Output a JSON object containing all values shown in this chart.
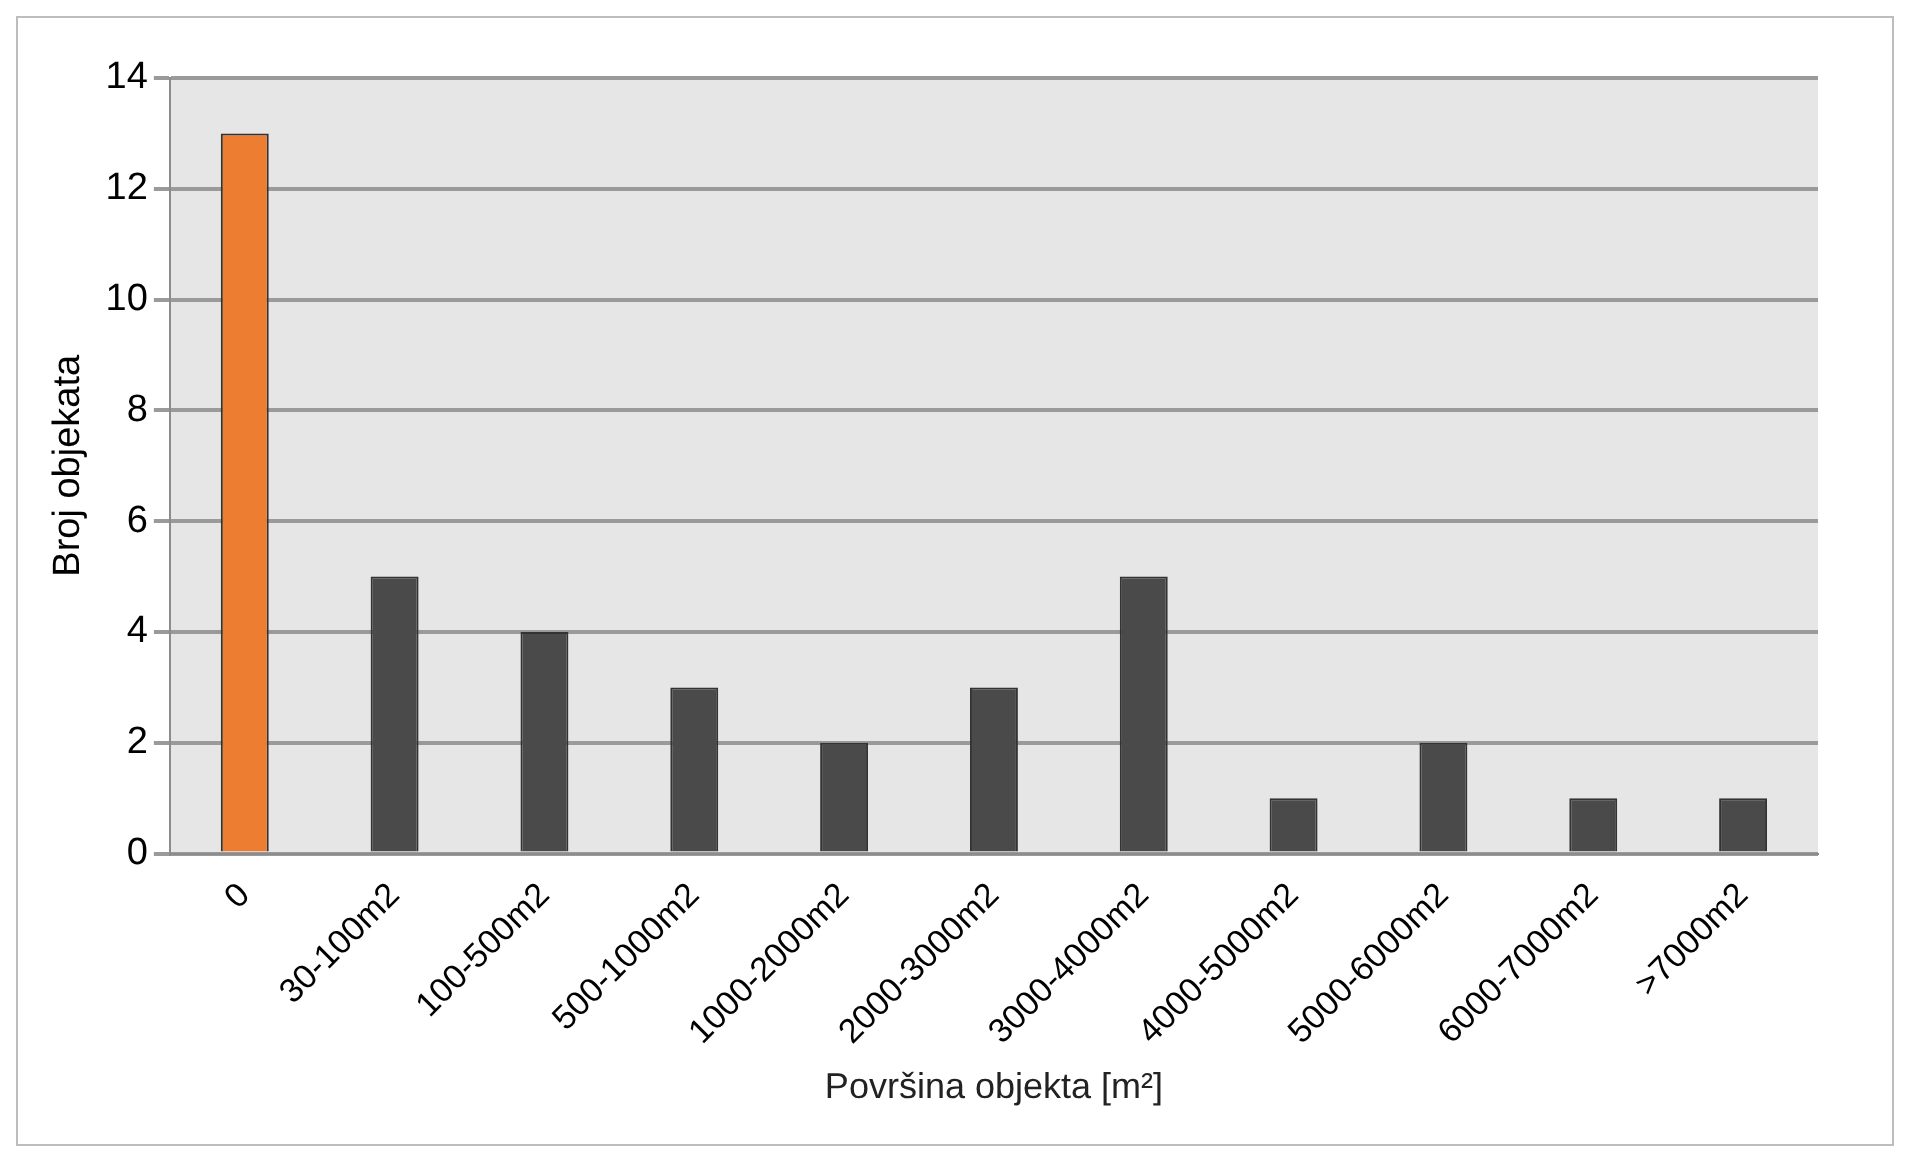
{
  "chart_data": {
    "type": "bar",
    "xlabel": "Površina objekta [m²]",
    "ylabel": "Broj objekata",
    "categories": [
      "0",
      "30-100m2",
      "100-500m2",
      "500-1000m2",
      "1000-2000m2",
      "2000-3000m2",
      "3000-4000m2",
      "4000-5000m2",
      "5000-6000m2",
      "6000-7000m2",
      ">7000m2"
    ],
    "values": [
      13,
      5,
      4,
      3,
      2,
      3,
      5,
      1,
      2,
      1,
      1
    ],
    "colors": [
      "#ed7d31",
      "#4a4a4a",
      "#4a4a4a",
      "#4a4a4a",
      "#4a4a4a",
      "#4a4a4a",
      "#4a4a4a",
      "#4a4a4a",
      "#4a4a4a",
      "#4a4a4a",
      "#4a4a4a"
    ],
    "ylim": [
      0,
      14
    ],
    "yticks": [
      0,
      2,
      4,
      6,
      8,
      10,
      12,
      14
    ],
    "grid": "y",
    "legend": false
  }
}
